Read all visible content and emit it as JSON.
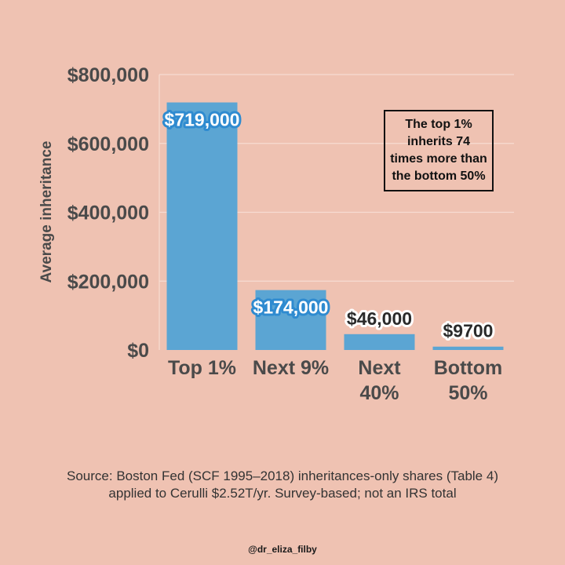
{
  "chart_data": {
    "type": "bar",
    "categories": [
      [
        "Top 1%"
      ],
      [
        "Next 9%"
      ],
      [
        "Next",
        "40%"
      ],
      [
        "Bottom",
        "50%"
      ]
    ],
    "values": [
      719000,
      174000,
      46000,
      9700
    ],
    "data_labels": [
      "$719,000",
      "$174,000",
      "$46,000",
      "$9700"
    ],
    "ylabel": "Average inheritance",
    "ylim": [
      0,
      800000
    ],
    "y_ticks": [
      {
        "value": 0,
        "label": "$0"
      },
      {
        "value": 200000,
        "label": "$200,000"
      },
      {
        "value": 400000,
        "label": "$400,000"
      },
      {
        "value": 600000,
        "label": "$600,000"
      },
      {
        "value": 800000,
        "label": "$800,000"
      }
    ],
    "grid": true,
    "bar_color": "#5ba5d3",
    "annotation": "The top 1% inherits 74 times more than the bottom 50%"
  },
  "source": {
    "line1": "Source: Boston Fed (SCF 1995–2018) inheritances-only shares (Table 4)",
    "line2": "applied to Cerulli $2.52T/yr. Survey-based; not an IRS total"
  },
  "handle": "@dr_eliza_filby",
  "colors": {
    "background": "#efc2b2",
    "bar": "#5ba5d3",
    "text": "#4a4a4a",
    "grid": "#f7dcd2"
  }
}
